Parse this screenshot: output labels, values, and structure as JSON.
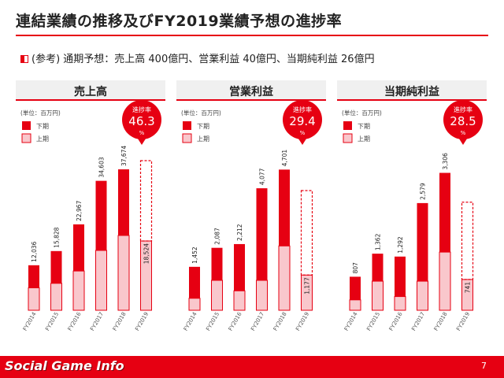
{
  "page": {
    "title": "連結業績の推移及びFY2019業績予想の進捗率",
    "reference": "(参考) 通期予想：売上高 400億円、営業利益 40億円、当期純利益 26億円",
    "page_number": "7",
    "brand": "Social Game Info"
  },
  "colors": {
    "accent": "#e60012",
    "upper_period": "#e60012",
    "first_half": "#f9c7cc",
    "badge": "#e60012"
  },
  "chart_data": [
    {
      "type": "bar",
      "title": "売上高",
      "unit": "(単位：百万円)",
      "legend": [
        "下期",
        "上期"
      ],
      "progress_label": "進捗率",
      "progress_value": "46.3",
      "progress_unit": "%",
      "categories": [
        "FY2014",
        "FY2015",
        "FY2016",
        "FY2017",
        "FY2018",
        "FY2019"
      ],
      "totals": [
        "12,036",
        "15,828",
        "22,967",
        "34,603",
        "37,674",
        "18,524"
      ],
      "series": [
        {
          "name": "上期",
          "values": [
            6000,
            7200,
            10500,
            16000,
            20000,
            18524
          ]
        },
        {
          "name": "下期",
          "values": [
            6036,
            8628,
            12467,
            18603,
            17674,
            null
          ]
        }
      ],
      "forecast_total": 40000,
      "ylim": [
        0,
        40000
      ]
    },
    {
      "type": "bar",
      "title": "営業利益",
      "unit": "(単位：百万円)",
      "legend": [
        "下期",
        "上期"
      ],
      "progress_label": "進捗率",
      "progress_value": "29.4",
      "progress_unit": "%",
      "categories": [
        "FY2014",
        "FY2015",
        "FY2016",
        "FY2017",
        "FY2018",
        "FY2019"
      ],
      "totals": [
        "1,452",
        "2,087",
        "2,212",
        "4,077",
        "4,701",
        "1,177"
      ],
      "series": [
        {
          "name": "上期",
          "values": [
            400,
            1000,
            650,
            1000,
            2150,
            1177
          ]
        },
        {
          "name": "下期",
          "values": [
            1052,
            1087,
            1562,
            3077,
            2551,
            null
          ]
        }
      ],
      "forecast_total": 4000,
      "ylim": [
        0,
        5000
      ]
    },
    {
      "type": "bar",
      "title": "当期純利益",
      "unit": "(単位：百万円)",
      "legend": [
        "下期",
        "上期"
      ],
      "progress_label": "進捗率",
      "progress_value": "28.5",
      "progress_unit": "%",
      "categories": [
        "FY2014",
        "FY2015",
        "FY2016",
        "FY2017",
        "FY2018",
        "FY2019"
      ],
      "totals": [
        "807",
        "1,362",
        "1,292",
        "2,579",
        "3,306",
        "741"
      ],
      "series": [
        {
          "name": "上期",
          "values": [
            250,
            700,
            330,
            700,
            1400,
            741
          ]
        },
        {
          "name": "下期",
          "values": [
            557,
            662,
            962,
            1879,
            1906,
            null
          ]
        }
      ],
      "forecast_total": 2600,
      "ylim": [
        0,
        3600
      ]
    }
  ]
}
